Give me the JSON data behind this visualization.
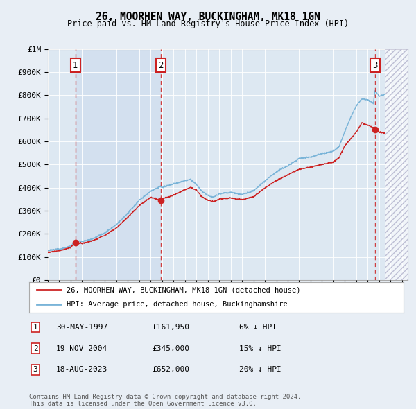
{
  "title": "26, MOORHEN WAY, BUCKINGHAM, MK18 1GN",
  "subtitle": "Price paid vs. HM Land Registry's House Price Index (HPI)",
  "ylabel_ticks": [
    "£0",
    "£100K",
    "£200K",
    "£300K",
    "£400K",
    "£500K",
    "£600K",
    "£700K",
    "£800K",
    "£900K",
    "£1M"
  ],
  "ytick_values": [
    0,
    100000,
    200000,
    300000,
    400000,
    500000,
    600000,
    700000,
    800000,
    900000,
    1000000
  ],
  "xlim_start": 1995.0,
  "xlim_end": 2026.5,
  "ylim_min": 0,
  "ylim_max": 1000000,
  "xtick_years": [
    1995,
    1996,
    1997,
    1998,
    1999,
    2000,
    2001,
    2002,
    2003,
    2004,
    2005,
    2006,
    2007,
    2008,
    2009,
    2010,
    2011,
    2012,
    2013,
    2014,
    2015,
    2016,
    2017,
    2018,
    2019,
    2020,
    2021,
    2022,
    2023,
    2024,
    2025,
    2026
  ],
  "sale_dates": [
    1997.41,
    2004.88,
    2023.63
  ],
  "sale_prices": [
    161950,
    345000,
    652000
  ],
  "sale_labels": [
    "1",
    "2",
    "3"
  ],
  "hpi_line_color": "#7ab4d8",
  "price_line_color": "#cc2222",
  "sale_marker_color": "#cc2222",
  "dashed_line_color": "#cc2222",
  "background_color": "#e8eef5",
  "plot_bg_color": "#dde8f2",
  "shaded_region_color": "#cddcee",
  "legend_line1": "26, MOORHEN WAY, BUCKINGHAM, MK18 1GN (detached house)",
  "legend_line2": "HPI: Average price, detached house, Buckinghamshire",
  "table_rows": [
    {
      "num": "1",
      "date": "30-MAY-1997",
      "price": "£161,950",
      "note": "6% ↓ HPI"
    },
    {
      "num": "2",
      "date": "19-NOV-2004",
      "price": "£345,000",
      "note": "15% ↓ HPI"
    },
    {
      "num": "3",
      "date": "18-AUG-2023",
      "price": "£652,000",
      "note": "20% ↓ HPI"
    }
  ],
  "footnote": "Contains HM Land Registry data © Crown copyright and database right 2024.\nThis data is licensed under the Open Government Licence v3.0.",
  "hatched_region_start": 2024.5,
  "hatched_region_end": 2026.5
}
